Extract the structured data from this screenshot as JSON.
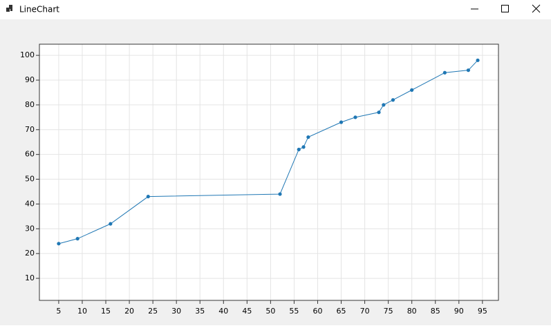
{
  "window": {
    "title": "LineChart"
  },
  "chart_data": {
    "type": "line",
    "x": [
      5,
      9,
      16,
      24,
      52,
      56,
      57,
      58,
      65,
      68,
      73,
      74,
      76,
      80,
      87,
      92,
      94
    ],
    "values": [
      24,
      26,
      32,
      43,
      44,
      62,
      63,
      67,
      73,
      75,
      77,
      80,
      82,
      86,
      93,
      94,
      98
    ],
    "color": "#1f77b4",
    "xlim": [
      0.9,
      98.4
    ],
    "ylim": [
      1.1,
      104.5
    ],
    "xticks": [
      5,
      10,
      15,
      20,
      25,
      30,
      35,
      40,
      45,
      50,
      55,
      60,
      65,
      70,
      75,
      80,
      85,
      90,
      95
    ],
    "yticks": [
      10,
      20,
      30,
      40,
      50,
      60,
      70,
      80,
      90,
      100
    ],
    "grid": true
  }
}
